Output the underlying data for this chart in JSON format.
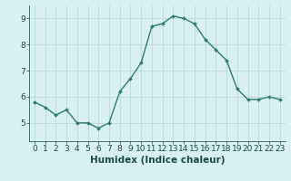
{
  "x": [
    0,
    1,
    2,
    3,
    4,
    5,
    6,
    7,
    8,
    9,
    10,
    11,
    12,
    13,
    14,
    15,
    16,
    17,
    18,
    19,
    20,
    21,
    22,
    23
  ],
  "y": [
    5.8,
    5.6,
    5.3,
    5.5,
    5.0,
    5.0,
    4.8,
    5.0,
    6.2,
    6.7,
    7.3,
    8.7,
    8.8,
    9.1,
    9.0,
    8.8,
    8.2,
    7.8,
    7.4,
    6.3,
    5.9,
    5.9,
    6.0,
    5.9
  ],
  "line_color": "#2e7d6e",
  "marker": "D",
  "marker_size": 2.0,
  "bg_color": "#d8f0f0",
  "grid_color": "#c0d8d8",
  "xlabel": "Humidex (Indice chaleur)",
  "ylim": [
    4.3,
    9.5
  ],
  "xlim": [
    -0.5,
    23.5
  ],
  "yticks": [
    5,
    6,
    7,
    8,
    9
  ],
  "xticks": [
    0,
    1,
    2,
    3,
    4,
    5,
    6,
    7,
    8,
    9,
    10,
    11,
    12,
    13,
    14,
    15,
    16,
    17,
    18,
    19,
    20,
    21,
    22,
    23
  ],
  "tick_fontsize": 6.5,
  "xlabel_fontsize": 7.5,
  "axis_color": "#2e6060",
  "text_color": "#1a4a4a",
  "linewidth": 1.0
}
